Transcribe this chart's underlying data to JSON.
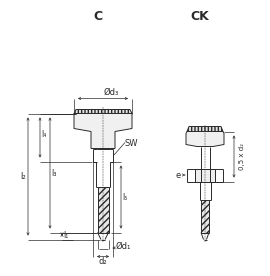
{
  "bg_color": "#ffffff",
  "line_color": "#2a2a2a",
  "dim_color": "#2a2a2a",
  "title_C": "C",
  "title_CK": "CK",
  "label_d3": "Ød₃",
  "label_d1": "Ød₁",
  "label_d2": "d₂",
  "label_SW": "SW",
  "label_l1": "l₁",
  "label_l2": "l₂",
  "label_l3": "l₃",
  "label_l4": "l₄",
  "label_l5": "l₅",
  "label_e": "e",
  "label_05d2": "0,5 x d₂"
}
